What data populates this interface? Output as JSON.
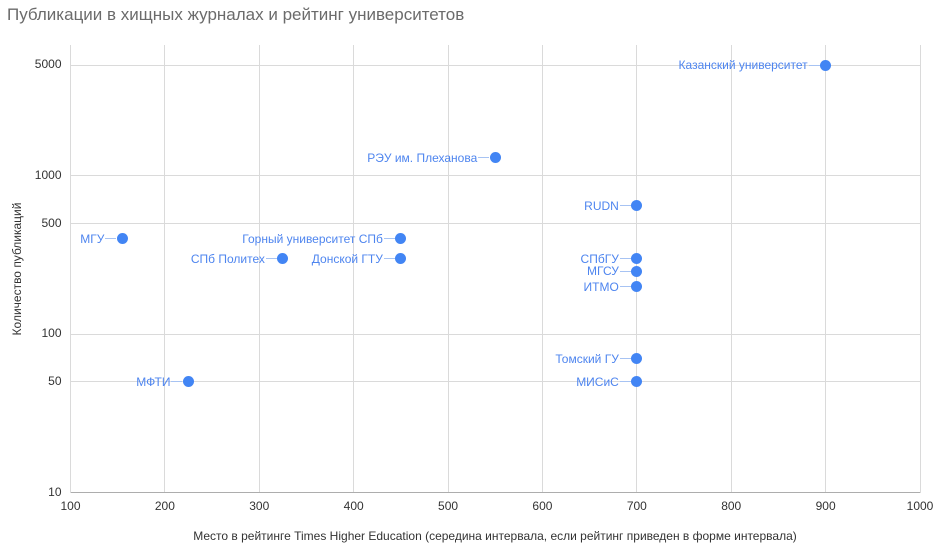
{
  "chart_data": {
    "type": "scatter",
    "title": "Публикации в хищных журналах и рейтинг университетов",
    "xlabel": "Место в рейтинге Times Higher Education (середина интервала, если рейтинг приведен в форме интервала)",
    "ylabel": "Количество публикаций",
    "x_scale": "linear",
    "y_scale": "log",
    "xlim": [
      100,
      1000
    ],
    "ylim": [
      10,
      6700
    ],
    "x_ticks": [
      100,
      200,
      300,
      400,
      500,
      600,
      700,
      800,
      900,
      1000
    ],
    "y_ticks": [
      10,
      50,
      100,
      500,
      1000,
      5000
    ],
    "grid": true,
    "legend": false,
    "points": [
      {
        "label": "МГУ",
        "x": 155,
        "y": 400
      },
      {
        "label": "МФТИ",
        "x": 225,
        "y": 50
      },
      {
        "label": "СПб Политех",
        "x": 325,
        "y": 300
      },
      {
        "label": "Горный университет СПб",
        "x": 450,
        "y": 400
      },
      {
        "label": "Донской ГТУ",
        "x": 450,
        "y": 300
      },
      {
        "label": "РЭУ им. Плеханова",
        "x": 550,
        "y": 1300
      },
      {
        "label": "RUDN",
        "x": 700,
        "y": 650
      },
      {
        "label": "СПбГУ",
        "x": 700,
        "y": 300
      },
      {
        "label": "МГСУ",
        "x": 700,
        "y": 250
      },
      {
        "label": "ИТМО",
        "x": 700,
        "y": 200
      },
      {
        "label": "Томский ГУ",
        "x": 700,
        "y": 70
      },
      {
        "label": "МИСиС",
        "x": 700,
        "y": 50
      },
      {
        "label": "Казанский университет",
        "x": 900,
        "y": 5000
      }
    ]
  },
  "colors": {
    "series": "#4285f4",
    "point_label": "#4e85ef",
    "connector": "#a7c3f3",
    "gridline": "#dadada",
    "axis_line": "#adadad",
    "title_text": "#6b6b6b",
    "tick_text": "#333333"
  }
}
